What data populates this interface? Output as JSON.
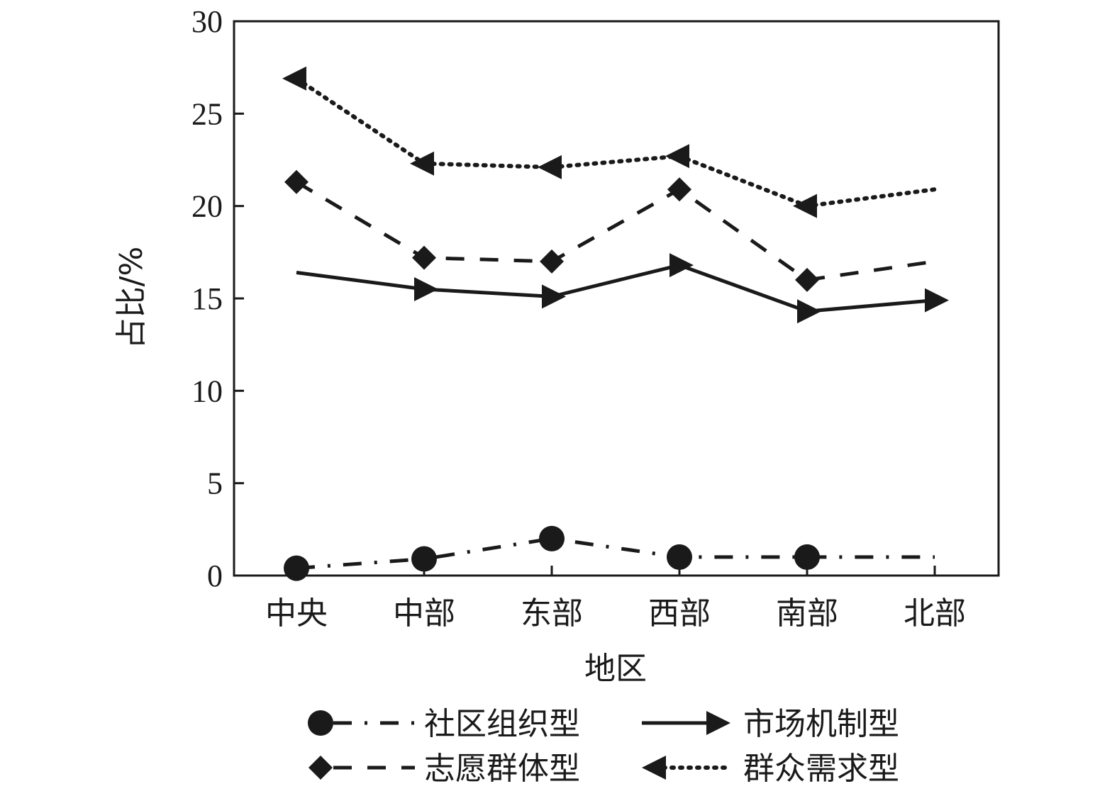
{
  "chart_data": {
    "type": "line",
    "categories": [
      "中央",
      "中部",
      "东部",
      "西部",
      "南部",
      "北部"
    ],
    "xlabel": "地区",
    "ylabel": "占比/%",
    "ylim": [
      0,
      30
    ],
    "yticks": [
      0,
      5,
      10,
      15,
      20,
      25,
      30
    ],
    "grid": false,
    "legend_position": "bottom",
    "series": [
      {
        "name": "社区组织型",
        "values": [
          0.4,
          0.9,
          2.0,
          1.0,
          1.0,
          1.0
        ],
        "marker": "circle",
        "dash": "dashdot",
        "color": "#1a1a1a",
        "last_marker": false
      },
      {
        "name": "市场机制型",
        "values": [
          16.4,
          15.5,
          15.1,
          16.8,
          14.3,
          14.9
        ],
        "marker": "arrow-right",
        "dash": "solid",
        "color": "#1a1a1a",
        "first_marker": false
      },
      {
        "name": "志愿群体型",
        "values": [
          21.3,
          17.2,
          17.0,
          20.9,
          16.0,
          17.0
        ],
        "marker": "diamond",
        "dash": "dashed",
        "color": "#1a1a1a",
        "last_marker": false
      },
      {
        "name": "群众需求型",
        "values": [
          26.9,
          22.3,
          22.1,
          22.7,
          20.0,
          20.9
        ],
        "marker": "arrow-left",
        "dash": "dotted",
        "color": "#1a1a1a",
        "last_marker": false
      }
    ]
  }
}
